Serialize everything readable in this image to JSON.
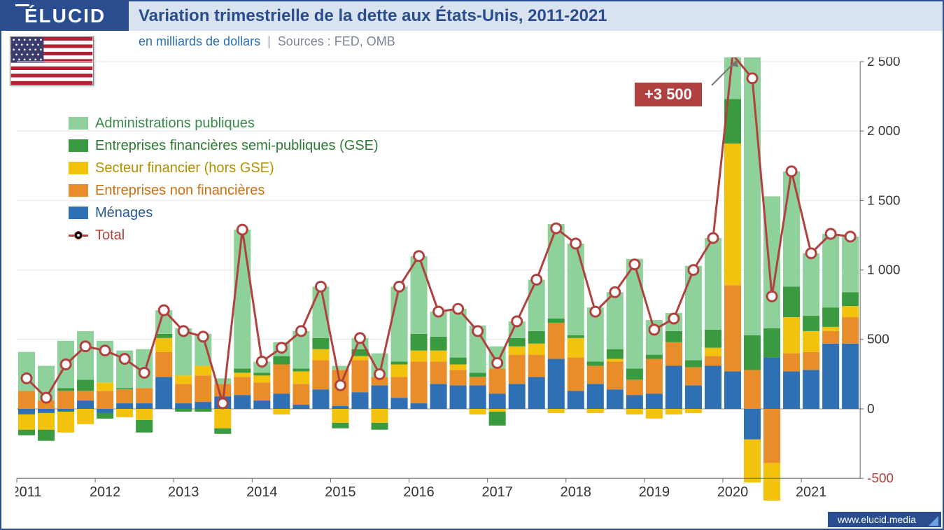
{
  "brand": "ÉLUCID",
  "title": "Variation trimestrielle de la dette aux États-Unis, 2011-2021",
  "subtitle_unit": "en milliards de dollars",
  "subtitle_sep": "|",
  "subtitle_sources": "Sources : FED, OMB",
  "footer_url": "www.elucid.media",
  "callout": {
    "label": "+3 500",
    "arrow_to": "peak"
  },
  "legend": [
    {
      "key": "admin",
      "label": "Administrations publiques",
      "color": "#8ed19a",
      "text_color": "#3a8a4a"
    },
    {
      "key": "gse",
      "label": "Entreprises financières semi-publiques (GSE)",
      "color": "#3a9a3f",
      "text_color": "#2e7a32"
    },
    {
      "key": "fin",
      "label": "Secteur financier (hors GSE)",
      "color": "#f2c20c",
      "text_color": "#b38f00"
    },
    {
      "key": "nonfin",
      "label": "Entreprises non financières",
      "color": "#e98d2a",
      "text_color": "#cc7012"
    },
    {
      "key": "menages",
      "label": "Ménages",
      "color": "#2f6fb3",
      "text_color": "#2a5a9a"
    },
    {
      "key": "total",
      "label": "Total",
      "color": "#b0413e",
      "text_color": "#b0413e",
      "type": "line"
    }
  ],
  "chart": {
    "type": "stacked-bar+line",
    "background": "#ffffff",
    "grid_color": "#e4e7ec",
    "axis_color": "#333333",
    "line_color": "#b0413e",
    "marker_fill": "#ffffff",
    "marker_stroke": "#b0413e",
    "marker_radius": 7,
    "line_width": 3,
    "bar_gap": 4,
    "ylim": [
      -500,
      2500
    ],
    "ytick_step": 500,
    "ytick_labels": [
      "-500",
      "0",
      "500",
      "1 000",
      "1 500",
      "2 000",
      "2 500"
    ],
    "x_year_labels": [
      "2011",
      "2012",
      "2013",
      "2014",
      "2015",
      "2016",
      "2017",
      "2018",
      "2019",
      "2020",
      "2021"
    ],
    "series_order_pos": [
      "menages",
      "nonfin",
      "fin",
      "gse",
      "admin"
    ],
    "colors": {
      "menages": "#2f6fb3",
      "nonfin": "#e98d2a",
      "fin": "#f2c20c",
      "gse": "#3a9a3f",
      "admin": "#8ed19a"
    },
    "data": [
      {
        "q": "2011Q1",
        "menages": -40,
        "nonfin": 130,
        "fin": -110,
        "gse": -40,
        "admin": 280,
        "total": 220
      },
      {
        "q": "2011Q2",
        "menages": -30,
        "nonfin": 60,
        "fin": -120,
        "gse": -80,
        "admin": 250,
        "total": 80
      },
      {
        "q": "2011Q3",
        "menages": -20,
        "nonfin": 130,
        "fin": -150,
        "gse": 20,
        "admin": 340,
        "total": 320
      },
      {
        "q": "2011Q4",
        "menages": 60,
        "nonfin": 70,
        "fin": -110,
        "gse": 80,
        "admin": 350,
        "total": 450
      },
      {
        "q": "2012Q1",
        "menages": -30,
        "nonfin": 130,
        "fin": 60,
        "gse": -40,
        "admin": 300,
        "total": 420
      },
      {
        "q": "2012Q2",
        "menages": 40,
        "nonfin": 100,
        "fin": -60,
        "gse": 10,
        "admin": 270,
        "total": 360
      },
      {
        "q": "2012Q3",
        "menages": 40,
        "nonfin": 110,
        "fin": -80,
        "gse": -90,
        "admin": 280,
        "total": 260
      },
      {
        "q": "2012Q4",
        "menages": 230,
        "nonfin": 180,
        "fin": 100,
        "gse": 30,
        "admin": 170,
        "total": 710
      },
      {
        "q": "2013Q1",
        "menages": 40,
        "nonfin": 140,
        "fin": 60,
        "gse": -20,
        "admin": 340,
        "total": 560
      },
      {
        "q": "2013Q2",
        "menages": 50,
        "nonfin": 190,
        "fin": 70,
        "gse": -20,
        "admin": 230,
        "total": 520
      },
      {
        "q": "2013Q3",
        "menages": 90,
        "nonfin": 90,
        "fin": -140,
        "gse": -40,
        "admin": 40,
        "total": 40
      },
      {
        "q": "2013Q4",
        "menages": 100,
        "nonfin": 130,
        "fin": 30,
        "gse": 30,
        "admin": 1000,
        "total": 1290
      },
      {
        "q": "2014Q1",
        "menages": 60,
        "nonfin": 130,
        "fin": 50,
        "gse": 20,
        "admin": 80,
        "total": 340
      },
      {
        "q": "2014Q2",
        "menages": 110,
        "nonfin": 210,
        "fin": -40,
        "gse": 60,
        "admin": 100,
        "total": 440
      },
      {
        "q": "2014Q3",
        "menages": 30,
        "nonfin": 150,
        "fin": 90,
        "gse": 20,
        "admin": 270,
        "total": 560
      },
      {
        "q": "2014Q4",
        "menages": 140,
        "nonfin": 210,
        "fin": 80,
        "gse": 80,
        "admin": 370,
        "total": 880
      },
      {
        "q": "2015Q1",
        "menages": 20,
        "nonfin": 260,
        "fin": -100,
        "gse": -40,
        "admin": 30,
        "total": 170
      },
      {
        "q": "2015Q2",
        "menages": 120,
        "nonfin": 230,
        "fin": 30,
        "gse": 50,
        "admin": 80,
        "total": 510
      },
      {
        "q": "2015Q3",
        "menages": 170,
        "nonfin": 60,
        "fin": -100,
        "gse": -50,
        "admin": 170,
        "total": 250
      },
      {
        "q": "2015Q4",
        "menages": 80,
        "nonfin": 150,
        "fin": 90,
        "gse": 20,
        "admin": 540,
        "total": 880
      },
      {
        "q": "2016Q1",
        "menages": 40,
        "nonfin": 300,
        "fin": 80,
        "gse": 120,
        "admin": 560,
        "total": 1100
      },
      {
        "q": "2016Q2",
        "menages": 180,
        "nonfin": 160,
        "fin": 80,
        "gse": 100,
        "admin": 180,
        "total": 700
      },
      {
        "q": "2016Q3",
        "menages": 170,
        "nonfin": 110,
        "fin": 40,
        "gse": 50,
        "admin": 350,
        "total": 720
      },
      {
        "q": "2016Q4",
        "menages": 170,
        "nonfin": 60,
        "fin": -40,
        "gse": 30,
        "admin": 340,
        "total": 560
      },
      {
        "q": "2017Q1",
        "menages": 110,
        "nonfin": 180,
        "fin": -20,
        "gse": -100,
        "admin": 160,
        "total": 330
      },
      {
        "q": "2017Q2",
        "menages": 180,
        "nonfin": 210,
        "fin": 60,
        "gse": 60,
        "admin": 120,
        "total": 630
      },
      {
        "q": "2017Q3",
        "menages": 230,
        "nonfin": 160,
        "fin": 80,
        "gse": 90,
        "admin": 370,
        "total": 930
      },
      {
        "q": "2017Q4",
        "menages": 360,
        "nonfin": 260,
        "fin": -30,
        "gse": 30,
        "admin": 680,
        "total": 1300
      },
      {
        "q": "2018Q1",
        "menages": 130,
        "nonfin": 240,
        "fin": 140,
        "gse": 20,
        "admin": 660,
        "total": 1190
      },
      {
        "q": "2018Q2",
        "menages": 180,
        "nonfin": 130,
        "fin": -30,
        "gse": 30,
        "admin": 390,
        "total": 700
      },
      {
        "q": "2018Q3",
        "menages": 140,
        "nonfin": 200,
        "fin": 20,
        "gse": 70,
        "admin": 410,
        "total": 840
      },
      {
        "q": "2018Q4",
        "menages": 100,
        "nonfin": 110,
        "fin": -40,
        "gse": 80,
        "admin": 790,
        "total": 1040
      },
      {
        "q": "2019Q1",
        "menages": 110,
        "nonfin": 250,
        "fin": -70,
        "gse": 30,
        "admin": 250,
        "total": 570
      },
      {
        "q": "2019Q2",
        "menages": 310,
        "nonfin": 170,
        "fin": -40,
        "gse": 80,
        "admin": 130,
        "total": 650
      },
      {
        "q": "2019Q3",
        "menages": 170,
        "nonfin": 130,
        "fin": -30,
        "gse": 50,
        "admin": 680,
        "total": 1000
      },
      {
        "q": "2019Q4",
        "menages": 310,
        "nonfin": 70,
        "fin": 60,
        "gse": 130,
        "admin": 660,
        "total": 1230
      },
      {
        "q": "2020Q1",
        "menages": 270,
        "nonfin": 620,
        "fin": 1020,
        "gse": 320,
        "admin": 1270,
        "total": 3500
      },
      {
        "q": "2020Q2",
        "menages": -220,
        "nonfin": 280,
        "fin": -310,
        "gse": 250,
        "admin": 2380,
        "total": 2380
      },
      {
        "q": "2020Q3",
        "menages": 370,
        "nonfin": -390,
        "fin": -330,
        "gse": 210,
        "admin": 950,
        "total": 810
      },
      {
        "q": "2020Q4",
        "menages": 270,
        "nonfin": 130,
        "fin": 260,
        "gse": 220,
        "admin": 830,
        "total": 1710
      },
      {
        "q": "2021Q1",
        "menages": 280,
        "nonfin": 130,
        "fin": 150,
        "gse": 110,
        "admin": 450,
        "total": 1120
      },
      {
        "q": "2021Q2",
        "menages": 470,
        "nonfin": 90,
        "fin": 30,
        "gse": 140,
        "admin": 530,
        "total": 1260
      },
      {
        "q": "2021Q3",
        "menages": 470,
        "nonfin": 190,
        "fin": 80,
        "gse": 100,
        "admin": 400,
        "total": 1240
      }
    ]
  },
  "flag": {
    "stripe_red": "#b22234",
    "stripe_white": "#ffffff",
    "canton": "#3c3b6e",
    "star": "#ffffff"
  }
}
